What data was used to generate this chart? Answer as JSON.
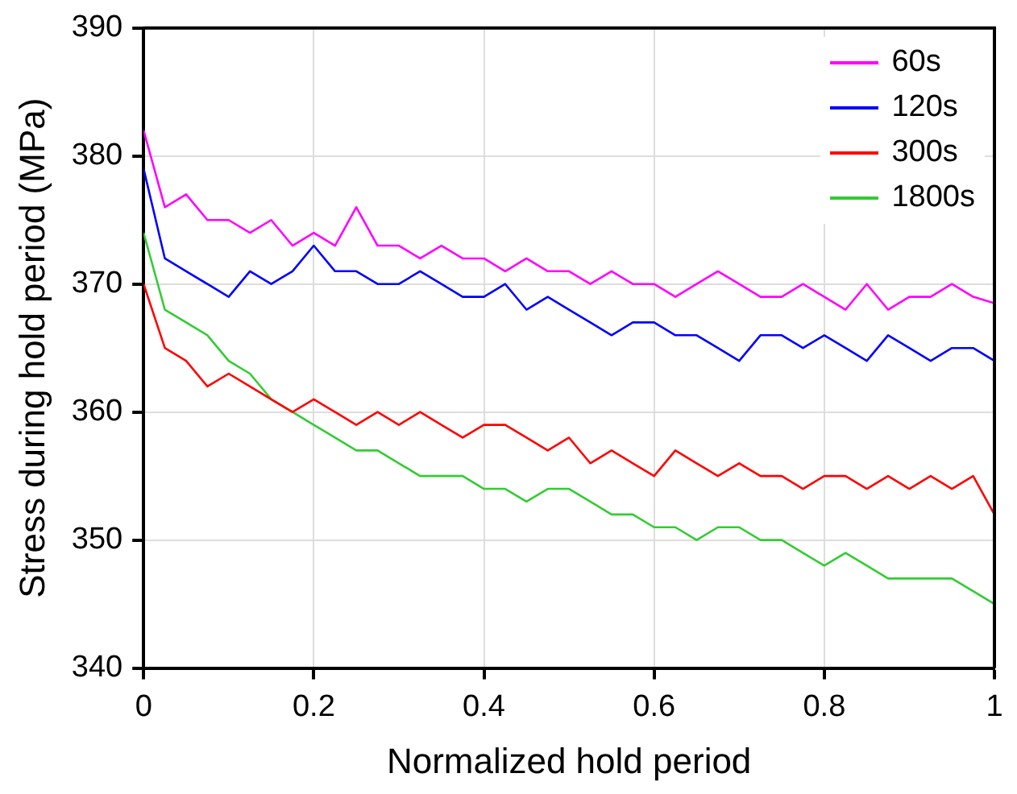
{
  "chart_data": {
    "type": "line",
    "xlabel": "Normalized hold period",
    "ylabel": "Stress during hold period (MPa)",
    "x": [
      0,
      0.025,
      0.05,
      0.075,
      0.1,
      0.125,
      0.15,
      0.175,
      0.2,
      0.225,
      0.25,
      0.275,
      0.3,
      0.325,
      0.35,
      0.375,
      0.4,
      0.425,
      0.45,
      0.475,
      0.5,
      0.525,
      0.55,
      0.575,
      0.6,
      0.625,
      0.65,
      0.675,
      0.7,
      0.725,
      0.75,
      0.775,
      0.8,
      0.825,
      0.85,
      0.875,
      0.9,
      0.925,
      0.95,
      0.975,
      1
    ],
    "series": [
      {
        "name": "60s",
        "color": "#ff00ff",
        "values": [
          382,
          376,
          377,
          375,
          375,
          374,
          375,
          373,
          374,
          373,
          376,
          373,
          373,
          372,
          373,
          372,
          372,
          371,
          372,
          371,
          371,
          370,
          371,
          370,
          370,
          369,
          370,
          371,
          370,
          369,
          369,
          370,
          369,
          368,
          370,
          368,
          369,
          369,
          370,
          369,
          368.5
        ]
      },
      {
        "name": "120s",
        "color": "#0000ff",
        "values": [
          379,
          372,
          371,
          370,
          369,
          371,
          370,
          371,
          373,
          371,
          371,
          370,
          370,
          371,
          370,
          369,
          369,
          370,
          368,
          369,
          368,
          367,
          366,
          367,
          367,
          366,
          366,
          365,
          364,
          366,
          366,
          365,
          366,
          365,
          364,
          366,
          365,
          364,
          365,
          365,
          364
        ]
      },
      {
        "name": "300s",
        "color": "#ff0000",
        "values": [
          370,
          365,
          364,
          362,
          363,
          362,
          361,
          360,
          361,
          360,
          359,
          360,
          359,
          360,
          359,
          358,
          359,
          359,
          358,
          357,
          358,
          356,
          357,
          356,
          355,
          357,
          356,
          355,
          356,
          355,
          355,
          354,
          355,
          355,
          354,
          355,
          354,
          355,
          354,
          355,
          352
        ]
      },
      {
        "name": "1800s",
        "color": "#33cc33",
        "values": [
          374,
          368,
          367,
          366,
          364,
          363,
          361,
          360,
          359,
          358,
          357,
          357,
          356,
          355,
          355,
          355,
          354,
          354,
          353,
          354,
          354,
          353,
          352,
          352,
          351,
          351,
          350,
          351,
          351,
          350,
          350,
          349,
          348,
          349,
          348,
          347,
          347,
          347,
          347,
          346,
          345
        ]
      }
    ],
    "xlim": [
      0,
      1
    ],
    "xticks": [
      0,
      0.2,
      0.4,
      0.6,
      0.8,
      1
    ],
    "ylim": [
      340,
      390
    ],
    "yticks": [
      340,
      350,
      360,
      370,
      380,
      390
    ],
    "grid": true,
    "legend": "top right",
    "marker": "none",
    "line_style": "solid"
  }
}
